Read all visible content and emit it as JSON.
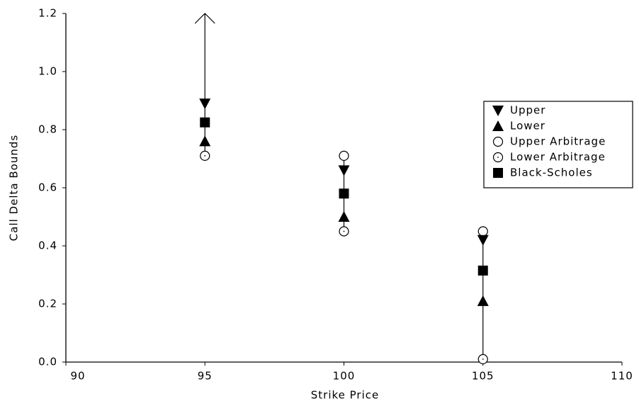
{
  "chart_data": {
    "type": "scatter",
    "xlabel": "Strike Price",
    "ylabel": "Call Delta Bounds",
    "x": [
      95,
      100,
      105
    ],
    "xlim": [
      90,
      110
    ],
    "xticks": [
      90,
      95,
      100,
      105,
      110
    ],
    "ylim": [
      0,
      1.2
    ],
    "yticks": [
      {
        "value": 0,
        "label": "0.0"
      },
      0.2,
      0.4,
      0.6,
      0.8,
      {
        "value": 1,
        "label": "1.0"
      },
      1.2
    ],
    "grid": false,
    "legend": "right",
    "series": [
      {
        "name": "Upper",
        "color": "#000000",
        "marker": "triangle-down",
        "values": [
          0.89,
          0.66,
          0.42
        ]
      },
      {
        "name": "Lower",
        "color": "#000000",
        "marker": "triangle-up",
        "values": [
          0.76,
          0.5,
          0.21
        ]
      },
      {
        "name": "Upper Arbitrage",
        "color": "#000000",
        "marker": "circle",
        "values": [
          null,
          0.71,
          0.45
        ]
      },
      {
        "name": "Lower Arbitrage",
        "color": "#000000",
        "marker": "circle-dot",
        "values": [
          0.71,
          0.45,
          0.01
        ]
      },
      {
        "name": "Black-Scholes",
        "color": "#000000",
        "marker": "square",
        "values": [
          0.825,
          0.58,
          0.315
        ]
      }
    ]
  }
}
